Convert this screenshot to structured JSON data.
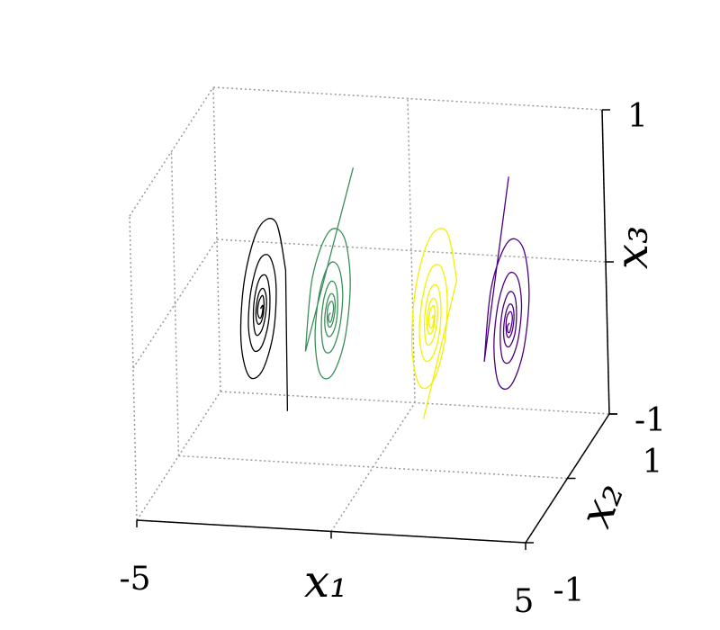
{
  "chart_data": {
    "type": "line3d",
    "xlabel": "x₁",
    "ylabel": "x₂",
    "zlabel": "x₃",
    "xlim": [
      -5,
      5
    ],
    "xticks": [
      -5,
      5
    ],
    "ylim": [
      -1,
      1
    ],
    "yticks": [
      -1,
      1
    ],
    "zlim": [
      -1,
      1
    ],
    "zticks": [
      -1,
      1
    ],
    "grid": true,
    "series": [
      {
        "color": "#000000",
        "x1": [
          -1.5,
          -2.8,
          -2.8,
          -2.8,
          -2.8,
          -2.8,
          -2.8,
          -2.8,
          -2.8,
          -2.8,
          -2.8,
          -2.8,
          -2.8,
          -2.8,
          -2.8,
          -2.8,
          -2.8,
          -2.8,
          -2.8,
          -2.8,
          -2.8,
          -2.8,
          -2.8,
          -2.8,
          -2.8,
          -2.8,
          -2.8,
          -2.8,
          -2.8,
          -2.8,
          -2.8,
          -2.8,
          -2.8,
          -2.8,
          -2.8,
          -2.8,
          -2.8,
          -2.8,
          -2.8,
          -2.8,
          -2.8,
          -2.8,
          -2.8
        ],
        "x2": [
          -0.6,
          0.6,
          0.4,
          0,
          -0.35,
          -0.47,
          -0.31,
          0,
          0.28,
          0.37,
          0.24,
          0,
          -0.21,
          -0.29,
          -0.19,
          0,
          0.17,
          0.22,
          0.15,
          0,
          -0.13,
          -0.17,
          -0.12,
          0,
          0.1,
          0.14,
          0.09,
          0,
          -0.08,
          -0.11,
          -0.07,
          0,
          0.06,
          0.08,
          0.06,
          0,
          -0.05,
          -0.07,
          -0.04,
          0,
          0.04,
          0.05,
          0
        ],
        "x3": [
          -0.4,
          0,
          0.4,
          0.53,
          0.35,
          0,
          -0.31,
          -0.41,
          -0.28,
          0,
          0.24,
          0.32,
          0.21,
          0,
          -0.19,
          -0.25,
          -0.17,
          0,
          0.15,
          0.2,
          0.13,
          0,
          -0.12,
          -0.15,
          -0.1,
          0,
          0.09,
          0.12,
          0.08,
          0,
          -0.07,
          -0.09,
          -0.06,
          0,
          0.06,
          0.07,
          0.05,
          0,
          -0.04,
          -0.06,
          -0.04,
          0,
          0
        ]
      },
      {
        "color": "#3b8e5a",
        "x1": [
          -1,
          -1,
          -1,
          -1,
          -1,
          -1,
          -1,
          -1,
          -1,
          -1,
          -1,
          -1,
          -1,
          -1,
          -1,
          -1,
          -1,
          -1,
          -1,
          -1,
          -1,
          -1,
          -1,
          -1,
          -1,
          -1,
          -1,
          -1,
          -1,
          -1,
          -1,
          -1,
          -1,
          -1,
          -1,
          -1,
          -1,
          -1,
          -1,
          -1,
          -1,
          -1,
          -1
        ],
        "x2": [
          0.6,
          -0.6,
          -0.4,
          0,
          0.35,
          0.47,
          0.31,
          0,
          -0.28,
          -0.37,
          -0.24,
          0,
          0.21,
          0.29,
          0.19,
          0,
          -0.17,
          -0.22,
          -0.15,
          0,
          0.13,
          0.17,
          0.12,
          0,
          -0.1,
          -0.14,
          -0.09,
          0,
          0.08,
          0.11,
          0.07,
          0,
          -0.06,
          -0.08,
          -0.06,
          0,
          0.05,
          0.07,
          0.04,
          0,
          -0.04,
          -0.05,
          0
        ],
        "x3": [
          0.7,
          0,
          0.4,
          0.53,
          0.35,
          0,
          -0.31,
          -0.41,
          -0.28,
          0,
          0.24,
          0.32,
          0.21,
          0,
          -0.19,
          -0.25,
          -0.17,
          0,
          0.15,
          0.2,
          0.13,
          0,
          -0.12,
          -0.15,
          -0.1,
          0,
          0.09,
          0.12,
          0.08,
          0,
          -0.07,
          -0.09,
          -0.06,
          0,
          0.06,
          0.07,
          0.05,
          0,
          -0.04,
          -0.06,
          -0.04,
          0,
          0
        ]
      },
      {
        "color": "#f2f200",
        "x1": [
          2,
          1.6,
          1.6,
          1.6,
          1.6,
          1.6,
          1.6,
          1.6,
          1.6,
          1.6,
          1.6,
          1.6,
          1.6,
          1.6,
          1.6,
          1.6,
          1.6,
          1.6,
          1.6,
          1.6,
          1.6,
          1.6,
          1.6,
          1.6,
          1.6,
          1.6,
          1.6,
          1.6,
          1.6,
          1.6,
          1.6,
          1.6,
          1.6,
          1.6,
          1.6,
          1.6,
          1.6,
          1.6,
          1.6,
          1.6,
          1.6,
          1.6,
          1.6
        ],
        "x2": [
          -0.6,
          0.6,
          0.4,
          0,
          -0.35,
          -0.47,
          -0.31,
          0,
          0.28,
          0.37,
          0.24,
          0,
          -0.21,
          -0.29,
          -0.19,
          0,
          0.17,
          0.22,
          0.15,
          0,
          -0.13,
          -0.17,
          -0.12,
          0,
          0.1,
          0.14,
          0.09,
          0,
          -0.08,
          -0.11,
          -0.07,
          0,
          0.06,
          0.08,
          0.06,
          0,
          -0.05,
          -0.07,
          -0.04,
          0,
          0.04,
          0.05,
          0
        ],
        "x3": [
          -0.4,
          0,
          0.4,
          0.53,
          0.35,
          0,
          -0.31,
          -0.41,
          -0.28,
          0,
          0.24,
          0.32,
          0.21,
          0,
          -0.19,
          -0.25,
          -0.17,
          0,
          0.15,
          0.2,
          0.13,
          0,
          -0.12,
          -0.15,
          -0.1,
          0,
          0.09,
          0.12,
          0.08,
          0,
          -0.07,
          -0.09,
          -0.06,
          0,
          0.06,
          0.07,
          0.05,
          0,
          -0.04,
          -0.06,
          -0.04,
          0,
          0
        ]
      },
      {
        "color": "#4b0082",
        "x1": [
          3,
          3.6,
          3.6,
          3.6,
          3.6,
          3.6,
          3.6,
          3.6,
          3.6,
          3.6,
          3.6,
          3.6,
          3.6,
          3.6,
          3.6,
          3.6,
          3.6,
          3.6,
          3.6,
          3.6,
          3.6,
          3.6,
          3.6,
          3.6,
          3.6,
          3.6,
          3.6,
          3.6,
          3.6,
          3.6,
          3.6,
          3.6,
          3.6,
          3.6,
          3.6,
          3.6,
          3.6,
          3.6,
          3.6,
          3.6,
          3.6,
          3.6,
          3.6
        ],
        "x2": [
          0.6,
          -0.6,
          -0.4,
          0,
          0.35,
          0.47,
          0.31,
          0,
          -0.28,
          -0.37,
          -0.24,
          0,
          0.21,
          0.29,
          0.19,
          0,
          -0.17,
          -0.22,
          -0.15,
          0,
          0.13,
          0.17,
          0.12,
          0,
          -0.1,
          -0.14,
          -0.09,
          0,
          0.08,
          0.11,
          0.07,
          0,
          -0.06,
          -0.08,
          -0.06,
          0,
          0.05,
          0.07,
          0.04,
          0,
          -0.04,
          -0.05,
          0
        ],
        "x3": [
          0.7,
          0,
          0.4,
          0.53,
          0.35,
          0,
          -0.31,
          -0.41,
          -0.28,
          0,
          0.24,
          0.32,
          0.21,
          0,
          -0.19,
          -0.25,
          -0.17,
          0,
          0.15,
          0.2,
          0.13,
          0,
          -0.12,
          -0.15,
          -0.1,
          0,
          0.09,
          0.12,
          0.08,
          0,
          -0.07,
          -0.09,
          -0.06,
          0,
          0.06,
          0.07,
          0.05,
          0,
          -0.04,
          -0.06,
          -0.04,
          0,
          0
        ]
      }
    ]
  }
}
